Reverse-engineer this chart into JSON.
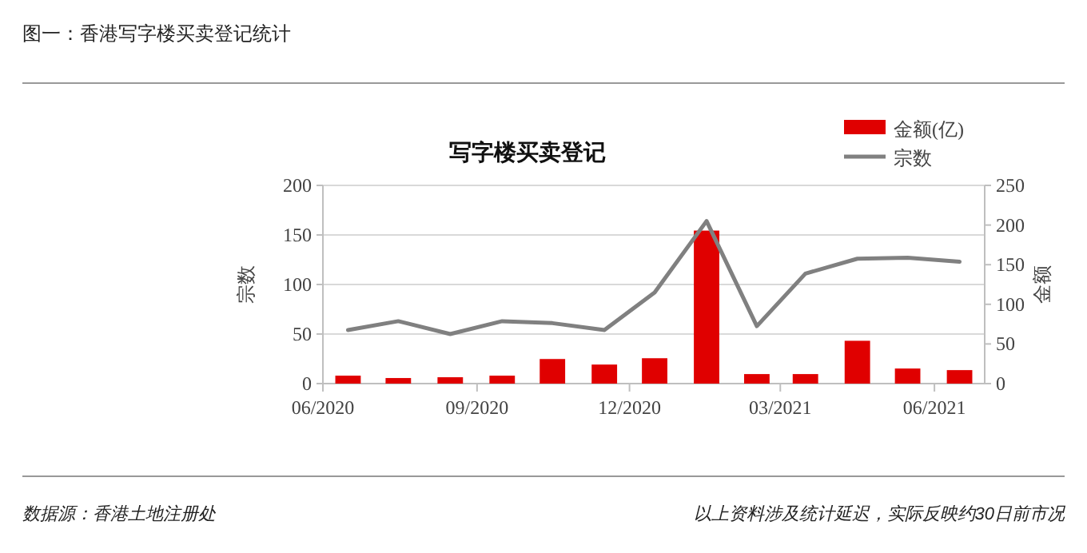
{
  "chart_data": {
    "type": "bar",
    "title": "图一：香港写字楼买卖登记统计",
    "subtitle": "写字楼买卖登记",
    "ylabel": "宗数",
    "y2label": "金额",
    "x": [
      "2020-06-16",
      "2020-07-16",
      "2020-08-16",
      "2020-09-16",
      "2020-10-16",
      "2020-11-16",
      "2020-12-16",
      "2021-01-16",
      "2021-02-15",
      "2021-03-16",
      "2021-04-16",
      "2021-05-16",
      "2021-06-16"
    ],
    "xlim": [
      "2020-06-01",
      "2021-07-01"
    ],
    "xticks": [
      {
        "value": "2020-06-01",
        "label": "06/2020"
      },
      {
        "value": "2020-09-01",
        "label": "09/2020"
      },
      {
        "value": "2020-12-01",
        "label": "12/2020"
      },
      {
        "value": "2021-03-01",
        "label": "03/2021"
      },
      {
        "value": "2021-06-01",
        "label": "06/2021"
      }
    ],
    "ylim": [
      0,
      200
    ],
    "yticks": [
      0,
      50,
      100,
      150,
      200
    ],
    "y2lim": [
      0,
      250
    ],
    "y2ticks": [
      0,
      50,
      100,
      150,
      200,
      250
    ],
    "series": [
      {
        "name": "金额(亿)",
        "axis": "y2",
        "color": "#e00000",
        "values": [
          10,
          7,
          8,
          10,
          31,
          24,
          32,
          193,
          12,
          12,
          54,
          19,
          17
        ]
      },
      {
        "name": "宗数",
        "type": "line",
        "axis": "y",
        "color": "#808080",
        "values": [
          54,
          63,
          50,
          63,
          61,
          54,
          92,
          164,
          58,
          111,
          126,
          127,
          123
        ]
      }
    ],
    "grid": "y",
    "legend": "top right",
    "annotations": [
      "数据源：香港土地注册处",
      "以上资料涉及统计延迟，实际反映约30日前市况"
    ]
  }
}
